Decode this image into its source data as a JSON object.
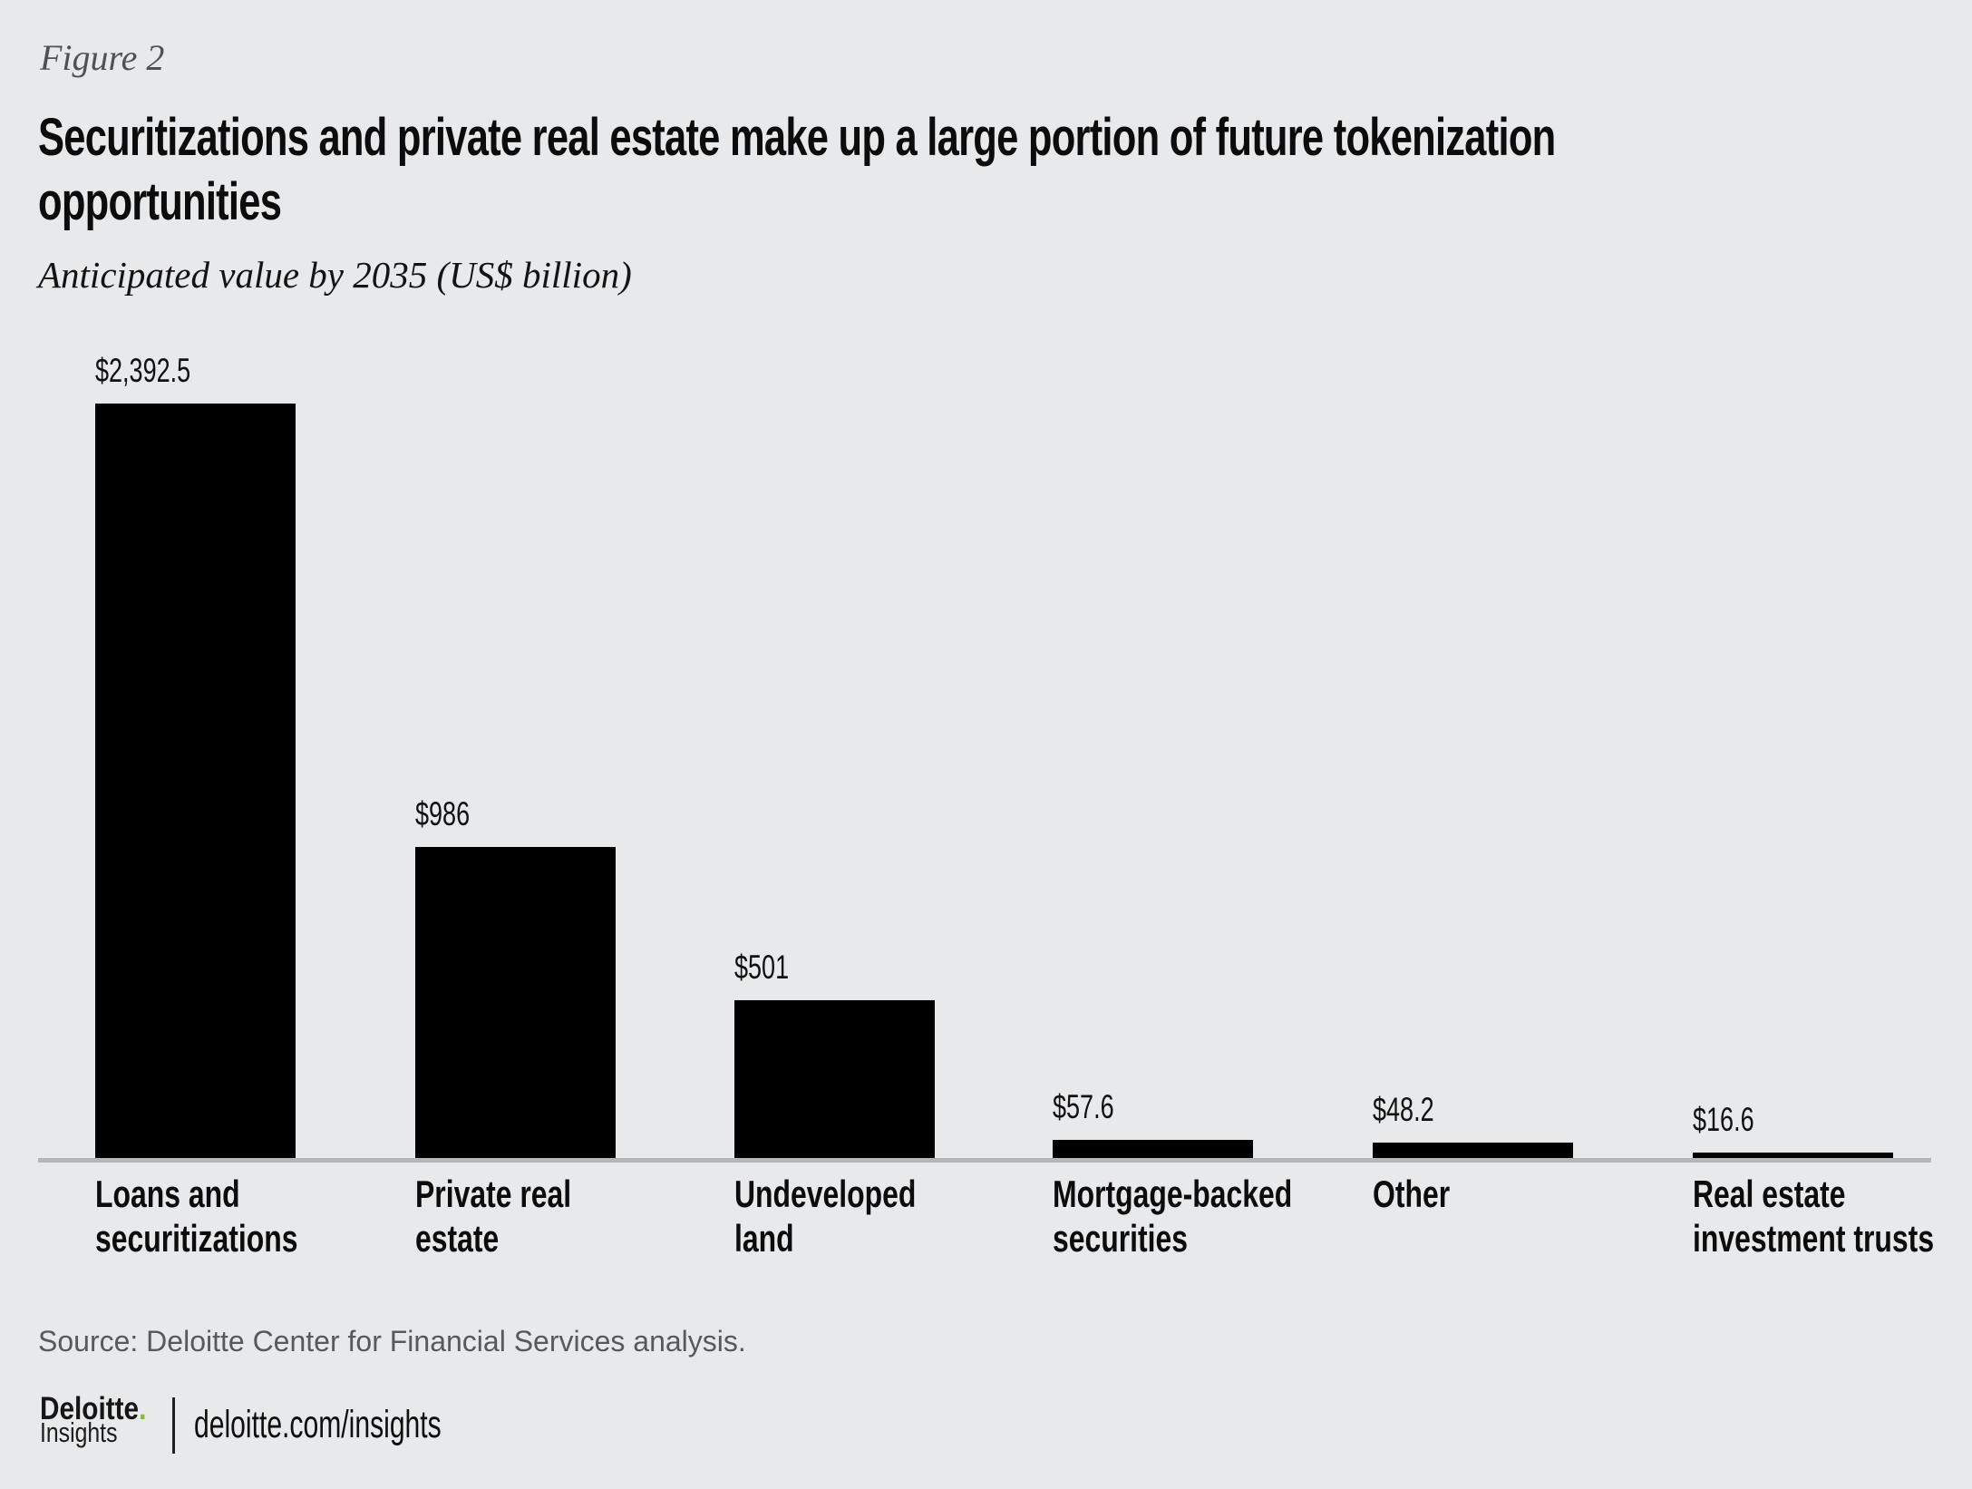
{
  "figure_label": "Figure 2",
  "title_lines": [
    "Securitizations and private real estate make up a large portion of future tokenization",
    "opportunities"
  ],
  "subtitle": "Anticipated value by 2035 (US$ billion)",
  "source_line": "Source: Deloitte Center for Financial Services analysis.",
  "footer": {
    "brand_name": "Deloitte",
    "brand_dot": ".",
    "brand_sub": "Insights",
    "url": "deloitte.com/insights"
  },
  "colors": {
    "background": "#e8e9eb",
    "bar": "#000000",
    "axis_line": "#b5b6b8",
    "figure_label_text": "#4f5254",
    "source_text": "#58595b",
    "brand_green": "#86bc25",
    "text": "#0c0c0c"
  },
  "chart_data": {
    "type": "bar",
    "title": "Securitizations and private real estate make up a large portion of future tokenization opportunities",
    "subtitle": "Anticipated value by 2035 (US$ billion)",
    "categories": [
      "Loans and securitizations",
      "Private real estate",
      "Undeveloped land",
      "Mortgage-backed securities",
      "Other",
      "Real estate investment trusts"
    ],
    "category_label_lines": [
      [
        "Loans and",
        "securitizations"
      ],
      [
        "Private real",
        "estate"
      ],
      [
        "Undeveloped",
        "land"
      ],
      [
        "Mortgage-backed",
        "securities"
      ],
      [
        "Other"
      ],
      [
        "Real estate",
        "investment trusts"
      ]
    ],
    "values": [
      2392.5,
      986,
      501,
      57.6,
      48.2,
      16.6
    ],
    "value_labels": [
      "$2,392.5",
      "$986",
      "$501",
      "$57.6",
      "$48.2",
      "$16.6"
    ],
    "unit": "US$ billion",
    "xlabel": "",
    "ylabel": "Anticipated value by 2035 (US$ billion)",
    "ylim": [
      0,
      2392.5
    ],
    "grid": false,
    "legend": false,
    "bar_color": "#000000",
    "baseline_axis": true
  }
}
